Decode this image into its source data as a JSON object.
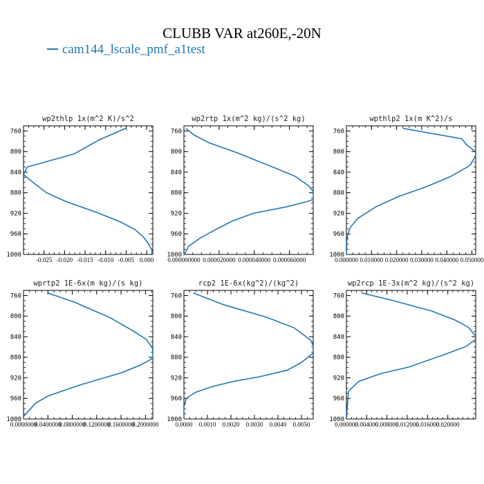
{
  "title": "CLUBB VAR at260E,-20N",
  "legend": {
    "label": "cam144_lscale_pmf_a1test",
    "color": "#1f77b4"
  },
  "line_color": "#1f77b4",
  "chart_data": [
    {
      "type": "line",
      "title": "wp2thlp  1x(m^2 K)/s^2",
      "xlim": [
        -0.03,
        0.0015
      ],
      "ylim": [
        1000,
        750
      ],
      "yticks": [
        760,
        800,
        840,
        880,
        920,
        960,
        1000
      ],
      "xticks": [
        -0.025,
        -0.02,
        -0.015,
        -0.01,
        -0.005,
        0.0
      ],
      "xtick_labels": [
        "-0.025",
        "-0.020",
        "-0.015",
        "-0.010",
        "-0.005",
        "0.000"
      ],
      "series": [
        {
          "x": [
            -0.0052,
            -0.0115,
            -0.0178,
            -0.0291,
            -0.03,
            -0.027,
            -0.0244,
            -0.0197,
            -0.0126,
            -0.0063,
            -0.0028,
            -0.0008,
            0.0005,
            0.0012,
            0.0015
          ],
          "y": [
            755,
            777,
            805,
            830,
            845,
            864,
            880,
            897,
            917,
            937,
            952,
            966,
            980,
            990,
            1000
          ]
        }
      ]
    },
    {
      "type": "line",
      "title": "wp2rtp  1x(m^2 kg)/(s^2 kg)",
      "xlim": [
        0.0,
        7.35e-05
      ],
      "ylim": [
        1000,
        750
      ],
      "yticks": [
        760,
        800,
        840,
        880,
        920,
        960,
        1000
      ],
      "xticks": [
        0.0,
        2e-05,
        4e-05,
        6e-05
      ],
      "xtick_labels": [
        "0.000000000",
        "0.000020000",
        "0.000040000",
        "0.000060000"
      ],
      "series": [
        {
          "x": [
            1.1e-06,
            5.9e-06,
            1.43e-05,
            3.07e-05,
            4.97e-05,
            6.32e-05,
            7.11e-05,
            7.35e-05,
            7.35e-05,
            7.03e-05,
            5.89e-05,
            3.95e-05,
            2.76e-05,
            1.89e-05,
            9.3e-06,
            2.7e-06,
            3e-07
          ],
          "y": [
            755,
            768,
            783,
            803,
            829,
            848,
            867,
            878,
            893,
            897,
            907,
            920,
            935,
            950,
            968,
            984,
            1000
          ]
        }
      ]
    },
    {
      "type": "line",
      "title": "wpthlp2  1x(m K^2)/s",
      "xlim": [
        0.0,
        0.0515
      ],
      "ylim": [
        1000,
        750
      ],
      "yticks": [
        760,
        800,
        840,
        880,
        920,
        960,
        1000
      ],
      "xticks": [
        0.0,
        0.01,
        0.02,
        0.03,
        0.04,
        0.05
      ],
      "xtick_labels": [
        "0.000000",
        "0.010000",
        "0.020000",
        "0.030000",
        "0.040000",
        "0.050000"
      ],
      "series": [
        {
          "x": [
            0.0225,
            0.0459,
            0.0479,
            0.0514,
            0.0515,
            0.0492,
            0.0413,
            0.0315,
            0.021,
            0.0119,
            0.0045,
            0.0016,
            0.0006,
            0.0002,
            0.0
          ],
          "y": [
            755,
            775,
            787,
            800,
            808,
            827,
            849,
            869,
            887,
            907,
            930,
            947,
            960,
            973,
            1000
          ]
        }
      ]
    },
    {
      "type": "line",
      "title": "wprtp2  1E-6x(m kg)/(s kg)",
      "xlim": [
        0.0,
        0.212
      ],
      "ylim": [
        1000,
        750
      ],
      "yticks": [
        760,
        800,
        840,
        880,
        920,
        960,
        1000
      ],
      "xticks": [
        0.0,
        0.04,
        0.08,
        0.12,
        0.16,
        0.2
      ],
      "xtick_labels": [
        "0.0000000",
        "0.0400000",
        "0.0800000",
        "0.1200000",
        "0.1600000",
        "0.2000000"
      ],
      "series": [
        {
          "x": [
            0.04,
            0.0838,
            0.1418,
            0.1773,
            0.2013,
            0.2116,
            0.2122,
            0.1919,
            0.1609,
            0.0922,
            0.0407,
            0.0201,
            0.0078,
            0.0,
            0.0
          ],
          "y": [
            755,
            773,
            803,
            827,
            845,
            862,
            882,
            895,
            910,
            934,
            955,
            969,
            985,
            995,
            1000
          ]
        }
      ]
    },
    {
      "type": "line",
      "title": "rcp2  1E-6x(kg^2)/(kg^2)",
      "xlim": [
        0.0,
        0.0055
      ],
      "ylim": [
        1000,
        750
      ],
      "yticks": [
        760,
        800,
        840,
        880,
        920,
        960,
        1000
      ],
      "xticks": [
        0.0,
        0.001,
        0.002,
        0.003,
        0.004,
        0.005
      ],
      "xtick_labels": [
        "0.0000",
        "0.0010",
        "0.0020",
        "0.0030",
        "0.0040",
        "0.0050"
      ],
      "series": [
        {
          "x": [
            0.0004,
            0.0017,
            0.0035,
            0.0047,
            0.0054,
            0.0055,
            0.0055,
            0.005,
            0.0044,
            0.0032,
            0.0021,
            0.0012,
            0.0005,
            0.0001,
            0.0,
            0.0
          ],
          "y": [
            755,
            778,
            802,
            823,
            847,
            858,
            872,
            890,
            905,
            918,
            927,
            937,
            948,
            960,
            977,
            1000
          ]
        }
      ]
    },
    {
      "type": "line",
      "title": "wp2rcp  1E-3x(m^2 kg)/(s^2 kg)",
      "xlim": [
        0.0,
        0.0255
      ],
      "ylim": [
        1000,
        750
      ],
      "yticks": [
        760,
        800,
        840,
        880,
        920,
        960,
        1000
      ],
      "xticks": [
        0.0,
        0.004,
        0.008,
        0.012,
        0.016,
        0.02
      ],
      "xtick_labels": [
        "0.000000",
        "0.004000",
        "0.008000",
        "0.012000",
        "0.016000",
        "0.020000"
      ],
      "series": [
        {
          "x": [
            0.003,
            0.0085,
            0.0168,
            0.0215,
            0.0241,
            0.0254,
            0.0255,
            0.0236,
            0.0195,
            0.0123,
            0.0067,
            0.0024,
            0.0004,
            0.0
          ],
          "y": [
            755,
            768,
            790,
            808,
            822,
            838,
            845,
            859,
            874,
            899,
            912,
            927,
            946,
            1000
          ]
        }
      ]
    }
  ]
}
